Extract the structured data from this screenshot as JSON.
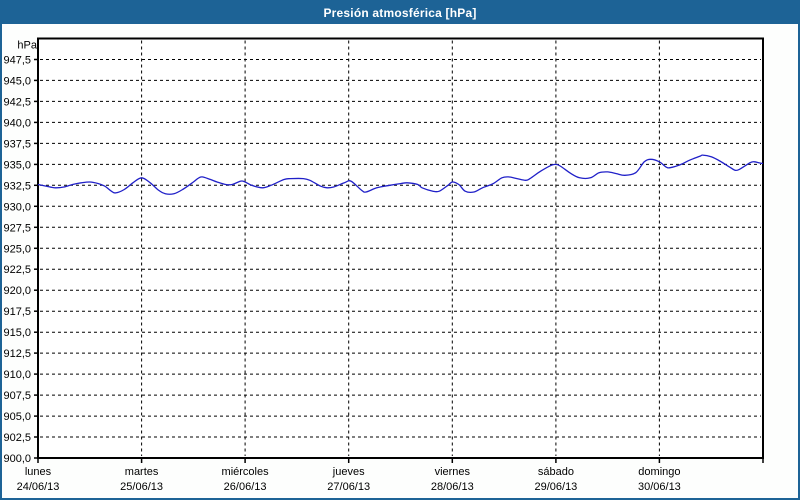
{
  "window": {
    "title": "Presión atmosférica [hPa]",
    "titlebar_color": "#1d6396",
    "border_color": "#1d6396",
    "background_color": "#fdfefd"
  },
  "chart_data": {
    "type": "line",
    "title": "Presión atmosférica [hPa]",
    "unit_label": "hPa",
    "grid": "dashed-black",
    "legend": "none",
    "y_axis": {
      "min": 900.0,
      "max": 950.0,
      "tick_step": 2.5,
      "tick_labels": [
        "947,5",
        "945,0",
        "942,5",
        "940,0",
        "937,5",
        "935,0",
        "932,5",
        "930,0",
        "927,5",
        "925,0",
        "922,5",
        "920,0",
        "917,5",
        "915,0",
        "912,5",
        "910,0",
        "907,5",
        "905,0",
        "902,5",
        "900,0"
      ]
    },
    "x_axis": {
      "hours_total": 168,
      "day_span_hours": 24,
      "days": [
        {
          "name": "lunes",
          "date": "24/06/13"
        },
        {
          "name": "martes",
          "date": "25/06/13"
        },
        {
          "name": "miércoles",
          "date": "26/06/13"
        },
        {
          "name": "jueves",
          "date": "27/06/13"
        },
        {
          "name": "viernes",
          "date": "28/06/13"
        },
        {
          "name": "sábado",
          "date": "29/06/13"
        },
        {
          "name": "domingo",
          "date": "30/06/13"
        }
      ]
    },
    "series": [
      {
        "name": "Presión atmosférica",
        "color": "#2020c8",
        "points_hours_hpa": [
          [
            0,
            932.6
          ],
          [
            2,
            932.4
          ],
          [
            4,
            932.2
          ],
          [
            6,
            932.3
          ],
          [
            8,
            932.6
          ],
          [
            10,
            932.8
          ],
          [
            12,
            932.9
          ],
          [
            14,
            932.7
          ],
          [
            15.5,
            932.4
          ],
          [
            17,
            931.8
          ],
          [
            18,
            931.6
          ],
          [
            20,
            932.0
          ],
          [
            22,
            932.8
          ],
          [
            24,
            933.4
          ],
          [
            26,
            932.8
          ],
          [
            28,
            931.9
          ],
          [
            29.5,
            931.5
          ],
          [
            31.5,
            931.5
          ],
          [
            33.5,
            932.0
          ],
          [
            36,
            932.9
          ],
          [
            37,
            933.3
          ],
          [
            38,
            933.5
          ],
          [
            40,
            933.2
          ],
          [
            41.5,
            932.9
          ],
          [
            43.5,
            932.6
          ],
          [
            45,
            932.6
          ],
          [
            47,
            933.0
          ],
          [
            48,
            932.9
          ],
          [
            49.5,
            932.5
          ],
          [
            52,
            932.2
          ],
          [
            54,
            932.5
          ],
          [
            57,
            933.2
          ],
          [
            58.5,
            933.3
          ],
          [
            61.5,
            933.3
          ],
          [
            63,
            933.1
          ],
          [
            65.5,
            932.4
          ],
          [
            67,
            932.2
          ],
          [
            68.5,
            932.3
          ],
          [
            71,
            932.8
          ],
          [
            72.5,
            933.0
          ],
          [
            75,
            931.9
          ],
          [
            76,
            931.7
          ],
          [
            78.5,
            932.2
          ],
          [
            81.5,
            932.5
          ],
          [
            84,
            932.7
          ],
          [
            85.5,
            932.8
          ],
          [
            88,
            932.6
          ],
          [
            89,
            932.2
          ],
          [
            91.5,
            931.8
          ],
          [
            93,
            931.8
          ],
          [
            95,
            932.5
          ],
          [
            96,
            932.9
          ],
          [
            97.5,
            932.6
          ],
          [
            99,
            931.8
          ],
          [
            101,
            931.7
          ],
          [
            103,
            932.2
          ],
          [
            105.5,
            932.7
          ],
          [
            107.5,
            933.4
          ],
          [
            109,
            933.5
          ],
          [
            111,
            933.3
          ],
          [
            113,
            933.1
          ],
          [
            114,
            933.3
          ],
          [
            116.5,
            934.2
          ],
          [
            119,
            934.9
          ],
          [
            120,
            935.0
          ],
          [
            121,
            934.8
          ],
          [
            123.5,
            933.9
          ],
          [
            125.5,
            933.4
          ],
          [
            128,
            933.4
          ],
          [
            130,
            934.0
          ],
          [
            132,
            934.1
          ],
          [
            134,
            933.9
          ],
          [
            136,
            933.7
          ],
          [
            138.5,
            934.0
          ],
          [
            140.5,
            935.3
          ],
          [
            142,
            935.6
          ],
          [
            144,
            935.3
          ],
          [
            145.5,
            934.7
          ],
          [
            146.5,
            934.6
          ],
          [
            149,
            935.0
          ],
          [
            151,
            935.5
          ],
          [
            153.5,
            936.0
          ],
          [
            154,
            936.1
          ],
          [
            156,
            935.9
          ],
          [
            158,
            935.4
          ],
          [
            160.5,
            934.6
          ],
          [
            161.5,
            934.3
          ],
          [
            162.5,
            934.4
          ],
          [
            165,
            935.2
          ],
          [
            166,
            935.3
          ],
          [
            167,
            935.2
          ],
          [
            168,
            935.1
          ]
        ]
      }
    ]
  }
}
